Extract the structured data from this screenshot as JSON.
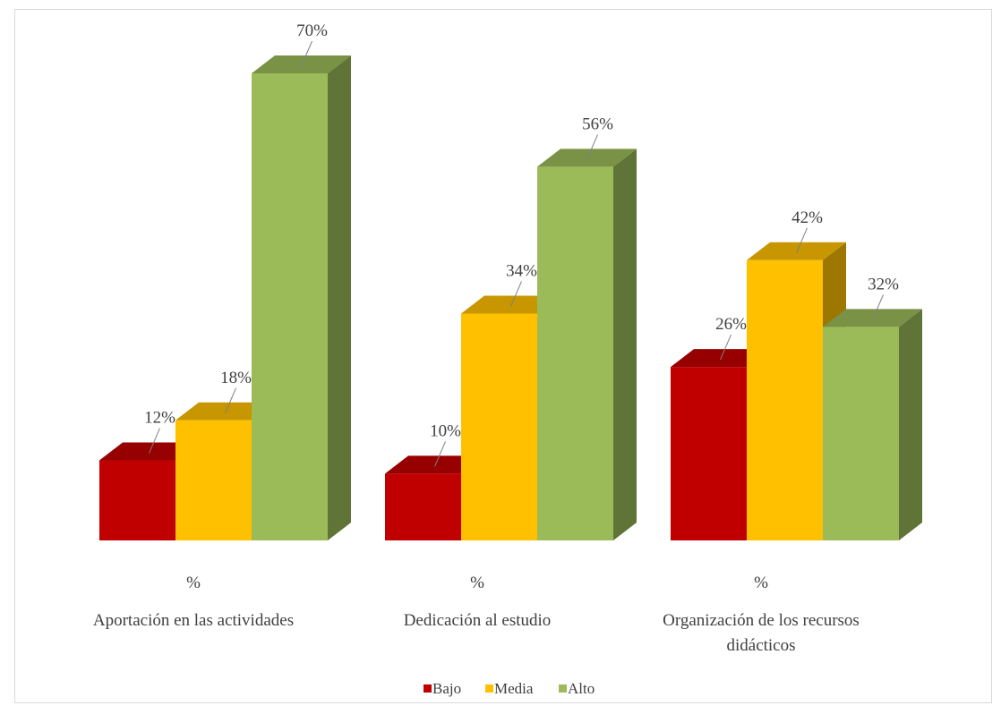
{
  "chart_data": {
    "type": "bar",
    "style": "3d-clustered-column",
    "title": "",
    "xlabel": "",
    "ylabel": "",
    "ylim": [
      0,
      70
    ],
    "grid": false,
    "legend_position": "bottom",
    "categories": [
      {
        "pct_label": "%",
        "lines": [
          "Aportación en las actividades"
        ]
      },
      {
        "pct_label": "%",
        "lines": [
          "Dedicación al estudio"
        ]
      },
      {
        "pct_label": "%",
        "lines": [
          "Organización de los recursos",
          "didácticos"
        ]
      }
    ],
    "series": [
      {
        "name": "Bajo",
        "color": "#c00000",
        "values": [
          12,
          10,
          26
        ],
        "labels": [
          "12%",
          "10%",
          "26%"
        ]
      },
      {
        "name": "Media",
        "color": "#ffc000",
        "values": [
          18,
          34,
          42
        ],
        "labels": [
          "18%",
          "34%",
          "42%"
        ]
      },
      {
        "name": "Alto",
        "color": "#9bbb59",
        "values": [
          70,
          56,
          32
        ],
        "labels": [
          "70%",
          "56%",
          "32%"
        ]
      }
    ]
  }
}
